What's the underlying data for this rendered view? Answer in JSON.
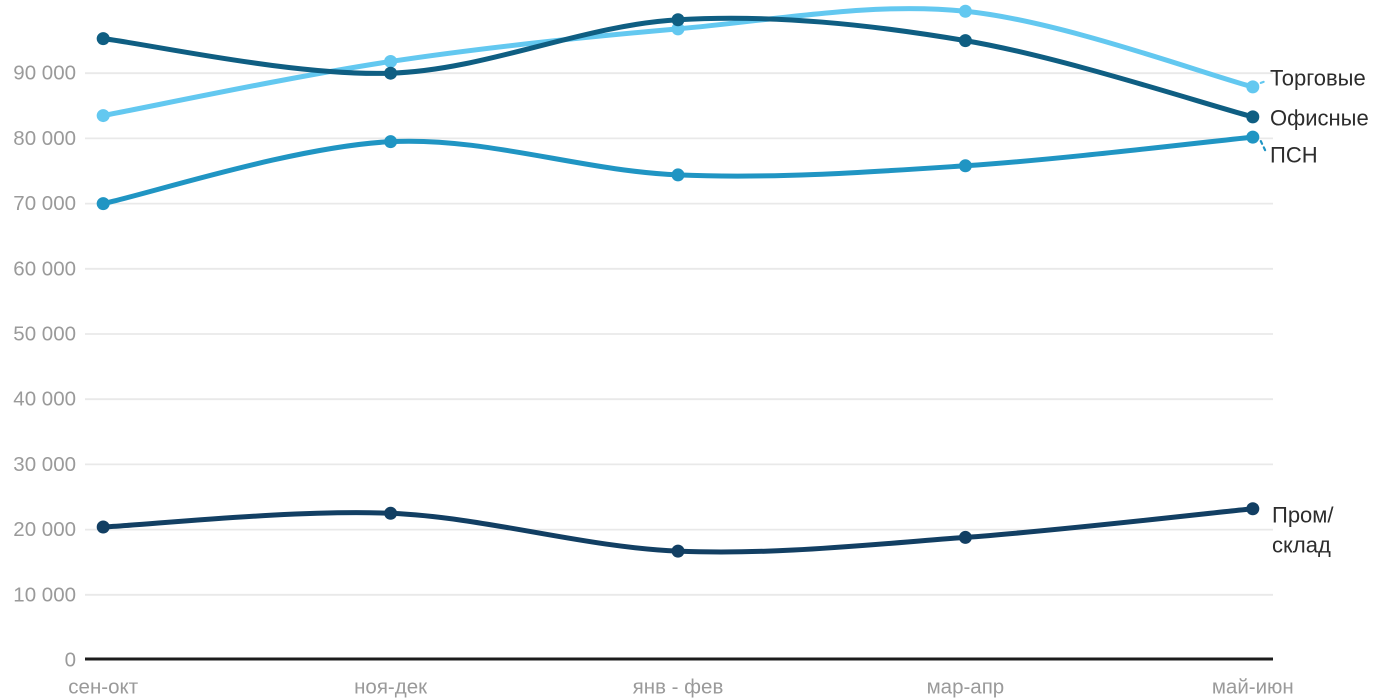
{
  "chart_data": {
    "type": "line",
    "title": "",
    "xlabel": "",
    "ylabel": "",
    "grid": true,
    "legend_position": "right-of-line-end",
    "categories": [
      "сен-окт",
      "ноя-дек",
      "янв - фев",
      "мар-апр",
      "май-июн"
    ],
    "series": [
      {
        "name": "Торговые",
        "values": [
          83500,
          91800,
          96800,
          99500,
          87900
        ],
        "color": "#63c8f0",
        "label_lines": [
          "Торговые"
        ]
      },
      {
        "name": "Офисные",
        "values": [
          95300,
          90000,
          98200,
          95000,
          83300
        ],
        "color": "#0f5e82",
        "label_lines": [
          "Офисные"
        ]
      },
      {
        "name": "ПСН",
        "values": [
          70000,
          79500,
          74400,
          75800,
          80200
        ],
        "color": "#2095c3",
        "label_lines": [
          "ПСН"
        ]
      },
      {
        "name": "Пром/склад",
        "values": [
          20400,
          22500,
          16700,
          18800,
          23200
        ],
        "color": "#123f63",
        "label_lines": [
          "Пром/",
          "склад"
        ]
      }
    ],
    "yticks": [
      0,
      10000,
      20000,
      30000,
      40000,
      50000,
      60000,
      70000,
      80000,
      90000
    ],
    "ytick_labels": [
      "0",
      "10 000",
      "20 000",
      "30 000",
      "40 000",
      "50 000",
      "60 000",
      "70 000",
      "80 000",
      "90 000"
    ],
    "ylim": [
      0,
      101500
    ],
    "xlim_categories": [
      0,
      4
    ]
  },
  "colors": {
    "background": "#ffffff",
    "axis_line": "#1c1c1c",
    "gridline": "#e9e9e9",
    "tick_label": "#9a9a9a",
    "legend_text": "#2d2d2d"
  }
}
